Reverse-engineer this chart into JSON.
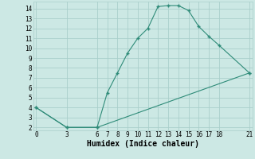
{
  "xlabel": "Humidex (Indice chaleur)",
  "line1_x": [
    0,
    3,
    6,
    7,
    8,
    9,
    10,
    11,
    12,
    13,
    14,
    15,
    16,
    17,
    18,
    21
  ],
  "line1_y": [
    4,
    2,
    2,
    5.5,
    7.5,
    9.5,
    11,
    12,
    14.2,
    14.3,
    14.3,
    13.8,
    12.2,
    11.2,
    10.3,
    7.5
  ],
  "line2_x": [
    0,
    3,
    6,
    21
  ],
  "line2_y": [
    4,
    2,
    2,
    7.5
  ],
  "color": "#2e8b78",
  "bg_color": "#cce8e4",
  "grid_color": "#aacfcb",
  "xlim": [
    -0.3,
    21.3
  ],
  "ylim": [
    1.7,
    14.7
  ],
  "xticks": [
    0,
    3,
    6,
    7,
    8,
    9,
    10,
    11,
    12,
    13,
    14,
    15,
    16,
    17,
    18,
    21
  ],
  "yticks": [
    2,
    3,
    4,
    5,
    6,
    7,
    8,
    9,
    10,
    11,
    12,
    13,
    14
  ],
  "tick_fontsize": 5.5,
  "label_fontsize": 7.0
}
